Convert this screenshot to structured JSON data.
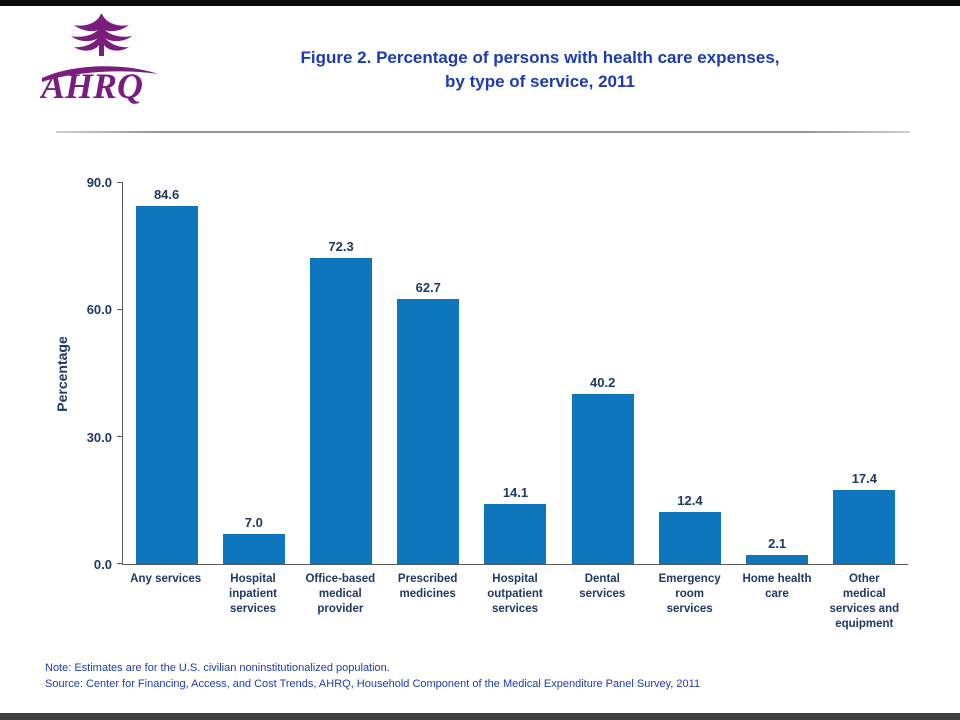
{
  "colors": {
    "accent_bar": "#0E76BC",
    "chart_text": "#1F3864",
    "title_text": "#1C3BB3",
    "note_text": "#1C3BB3",
    "logo_purple": "#7A1E7E",
    "axis_line": "#595959"
  },
  "header": {
    "logo_text": "AHRQ",
    "title_line1": "Figure 2. Percentage of persons with health care expenses,",
    "title_line2": "by type of service, 2011"
  },
  "chart_data": {
    "type": "bar",
    "title": "Figure 2. Percentage of persons with health care expenses, by type of service, 2011",
    "ylabel": "Percentage",
    "xlabel": "",
    "ylim": [
      0,
      90
    ],
    "grid": false,
    "legend_position": "none",
    "categories": [
      "Any services",
      "Hospital\ninpatient\nservices",
      "Office-based\nmedical\nprovider",
      "Prescribed\nmedicines",
      "Hospital\noutpatient\nservices",
      "Dental\nservices",
      "Emergency\nroom\nservices",
      "Home health\ncare",
      "Other\nmedical\nservices and\nequipment"
    ],
    "values": [
      84.6,
      7.0,
      72.3,
      62.7,
      14.1,
      40.2,
      12.4,
      2.1,
      17.4
    ],
    "value_labels": [
      "84.6",
      "7.0",
      "72.3",
      "62.7",
      "14.1",
      "40.2",
      "12.4",
      "2.1",
      "17.4"
    ],
    "yticks": [
      {
        "value": 0,
        "label": "0.0"
      },
      {
        "value": 30,
        "label": "30.0"
      },
      {
        "value": 60,
        "label": "60.0"
      },
      {
        "value": 90,
        "label": "90.0"
      }
    ],
    "bar_color": "#0E76BC"
  },
  "footer": {
    "note": "Note: Estimates are for the U.S. civilian noninstitutionalized population.",
    "source": "Source: Center for Financing, Access, and Cost Trends, AHRQ, Household Component of the Medical Expenditure Panel Survey, 2011"
  }
}
